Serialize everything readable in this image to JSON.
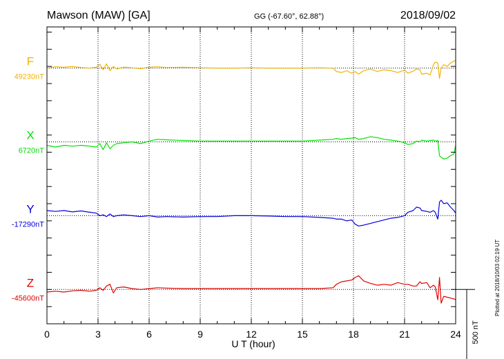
{
  "header": {
    "title": "Mawson (MAW)  [GA]",
    "coordinates": "GG (-67.60°,  62.88°)",
    "date": "2018/09/02"
  },
  "footnote": "Plotted at 2018/10/03 02:19 UT",
  "chart_data": {
    "type": "line",
    "xlabel": "U T (hour)",
    "xlim": [
      0,
      24
    ],
    "xticks": [
      "0",
      "3",
      "6",
      "9",
      "12",
      "15",
      "18",
      "21",
      "24"
    ],
    "grid_x": true,
    "scale_bar": {
      "label": "500 nT",
      "value_nT": 500
    },
    "y_full_range_nT": 1730,
    "series": [
      {
        "name": "F",
        "baseline_label": "49230nT",
        "baseline_nT": 49230,
        "color": "#f0b400",
        "offset_nT": 1490,
        "x": [
          0,
          0.5,
          1,
          1.5,
          2,
          2.5,
          2.9,
          3.1,
          3.3,
          3.5,
          3.7,
          3.9,
          4.1,
          4.5,
          5,
          5.5,
          6,
          6.5,
          7,
          8,
          9,
          10,
          11,
          12,
          13,
          14,
          15,
          16,
          16.8,
          17.0,
          17.3,
          17.6,
          17.9,
          18.1,
          18.3,
          18.6,
          19,
          19.4,
          19.8,
          20.2,
          20.6,
          21,
          21.2,
          21.5,
          21.7,
          21.9,
          22.0,
          22.3,
          22.5,
          22.7,
          22.8,
          22.95,
          23.05,
          23.15,
          23.3,
          23.5,
          23.7,
          23.9,
          24
        ],
        "values": [
          0,
          8,
          5,
          10,
          3,
          0,
          5,
          22,
          -10,
          25,
          -15,
          10,
          -5,
          6,
          2,
          -3,
          5,
          8,
          3,
          5,
          2,
          0,
          0,
          2,
          0,
          0,
          0,
          2,
          0,
          -20,
          -25,
          -15,
          -30,
          -20,
          -35,
          -15,
          -5,
          -20,
          -10,
          -15,
          -25,
          -12,
          -30,
          -18,
          -5,
          -10,
          -35,
          -30,
          -40,
          20,
          35,
          30,
          -60,
          0,
          20,
          10,
          30,
          40,
          45
        ]
      },
      {
        "name": "X",
        "baseline_label": "6720nT",
        "baseline_nT": 6720,
        "color": "#00e000",
        "offset_nT": 1060,
        "x": [
          0,
          0.5,
          1,
          1.5,
          2,
          2.5,
          2.9,
          3.1,
          3.3,
          3.5,
          3.7,
          3.9,
          4.1,
          4.5,
          5,
          5.5,
          6,
          6.5,
          7,
          8,
          9,
          10,
          11,
          12,
          13,
          14,
          15,
          16,
          16.8,
          17.0,
          17.3,
          17.6,
          17.9,
          18.1,
          18.3,
          18.6,
          19,
          19.4,
          19.8,
          20.2,
          20.6,
          21,
          21.2,
          21.5,
          21.7,
          21.9,
          22.0,
          22.3,
          22.5,
          22.7,
          22.8,
          22.95,
          23.05,
          23.15,
          23.3,
          23.5,
          23.7,
          23.9,
          24
        ],
        "values": [
          -20,
          -30,
          -20,
          -25,
          -20,
          -25,
          -30,
          -10,
          -45,
          -5,
          -40,
          -20,
          -10,
          -5,
          0,
          -10,
          5,
          15,
          12,
          8,
          5,
          5,
          5,
          5,
          5,
          5,
          5,
          10,
          15,
          20,
          15,
          20,
          22,
          25,
          15,
          20,
          30,
          25,
          15,
          10,
          5,
          -5,
          -15,
          -10,
          5,
          0,
          10,
          5,
          8,
          10,
          5,
          8,
          -80,
          -90,
          -100,
          -95,
          -80,
          -70,
          -20
        ]
      },
      {
        "name": "Y",
        "baseline_label": "-17290nT",
        "baseline_nT": -17290,
        "color": "#0000e0",
        "offset_nT": 630,
        "x": [
          0,
          0.5,
          1,
          1.5,
          2,
          2.5,
          2.9,
          3.1,
          3.3,
          3.5,
          3.7,
          3.9,
          4.1,
          4.5,
          5,
          5.5,
          6,
          6.5,
          7,
          8,
          9,
          10,
          11,
          12,
          13,
          14,
          15,
          16,
          16.8,
          17.0,
          17.3,
          17.6,
          17.9,
          18.1,
          18.3,
          18.6,
          19,
          19.4,
          19.8,
          20.2,
          20.6,
          21,
          21.2,
          21.5,
          21.7,
          21.9,
          22.0,
          22.3,
          22.5,
          22.7,
          22.8,
          22.95,
          23.05,
          23.15,
          23.3,
          23.5,
          23.7,
          23.9,
          24
        ],
        "values": [
          30,
          25,
          30,
          22,
          28,
          20,
          15,
          0,
          5,
          -5,
          10,
          -5,
          0,
          5,
          0,
          -5,
          0,
          -8,
          -5,
          -8,
          -5,
          -5,
          0,
          0,
          -2,
          -5,
          -5,
          -10,
          -15,
          -20,
          -20,
          -30,
          -25,
          -50,
          -60,
          -55,
          -45,
          -35,
          -25,
          -15,
          -10,
          0,
          20,
          30,
          50,
          45,
          30,
          25,
          20,
          30,
          20,
          -20,
          80,
          90,
          70,
          75,
          50,
          30,
          15
        ]
      },
      {
        "name": "Z",
        "baseline_label": "-45600nT",
        "baseline_nT": -45600,
        "color": "#e00000",
        "offset_nT": 200,
        "x": [
          0,
          0.5,
          1,
          1.5,
          2,
          2.5,
          2.9,
          3.1,
          3.3,
          3.5,
          3.7,
          3.9,
          4.1,
          4.5,
          5,
          5.5,
          6,
          6.5,
          7,
          8,
          9,
          10,
          11,
          12,
          13,
          14,
          15,
          16,
          16.8,
          17.0,
          17.3,
          17.6,
          17.9,
          18.1,
          18.3,
          18.6,
          19,
          19.4,
          19.8,
          20.2,
          20.6,
          21,
          21.2,
          21.5,
          21.7,
          21.9,
          22.0,
          22.3,
          22.5,
          22.7,
          22.8,
          22.95,
          23.05,
          23.15,
          23.3,
          23.5,
          23.7,
          23.9,
          24
        ],
        "values": [
          -15,
          -10,
          -15,
          -8,
          -5,
          -10,
          -5,
          10,
          -5,
          20,
          30,
          -20,
          10,
          15,
          5,
          0,
          5,
          10,
          8,
          5,
          5,
          5,
          5,
          5,
          5,
          5,
          5,
          5,
          10,
          30,
          45,
          50,
          55,
          70,
          80,
          50,
          35,
          25,
          30,
          25,
          40,
          30,
          30,
          20,
          20,
          45,
          35,
          40,
          10,
          25,
          15,
          -60,
          70,
          -80,
          -40,
          -45,
          -50,
          -55,
          -60
        ]
      }
    ]
  }
}
